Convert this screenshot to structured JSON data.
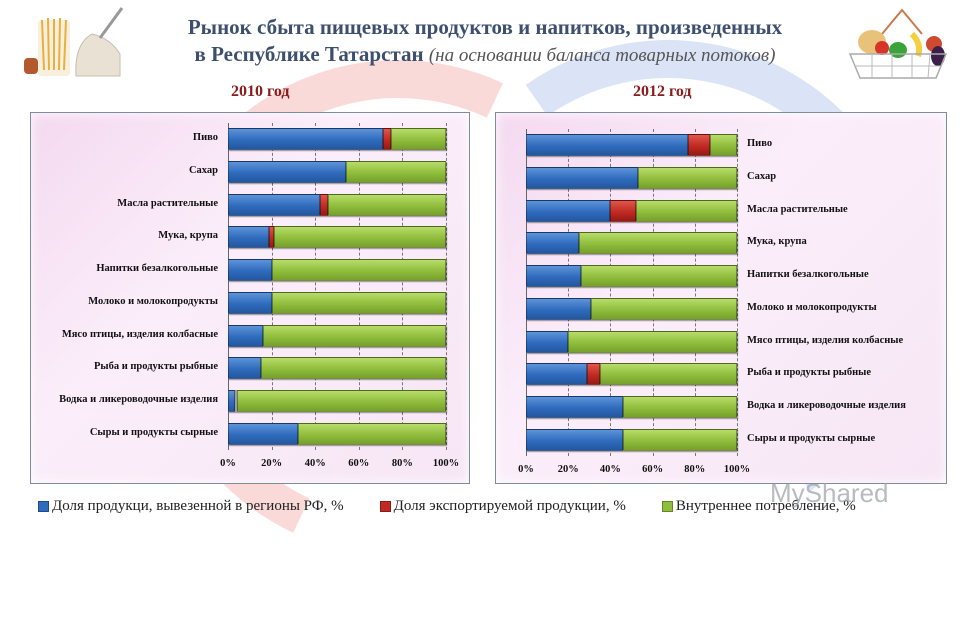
{
  "header": {
    "title_bold_line1": "Рынок сбыта пищевых продуктов и напитков, произведенных",
    "title_bold_line2": "в Республике Татарстан",
    "title_italic": "(на основании баланса товарных потоков)",
    "left_image": "pasta-flour-image",
    "right_image": "grocery-basket-image"
  },
  "colors": {
    "blue": "#2f6bbd",
    "red": "#c02a22",
    "green": "#8fbd3c",
    "year_label": "#8b1a1a",
    "title": "#3d4f6e"
  },
  "watermark": "MyShared",
  "chart_data": [
    {
      "type": "bar",
      "orientation": "horizontal",
      "stacked": "percent",
      "title": "2010 год",
      "categories": [
        "Пиво",
        "Сахар",
        "Масла растительные",
        "Мука, крупа",
        "Напитки безалкогольные",
        "Молоко и молокопродукты",
        "Мясо птицы, изделия колбасные",
        "Рыба и продукты рыбные",
        "Водка и ликероводочные изделия",
        "Сыры и продукты сырные"
      ],
      "series": [
        {
          "name": "Доля продукци, вывезенной в регионы РФ, %",
          "color": "#2f6bbd",
          "values": [
            71,
            54,
            42,
            19,
            20,
            20,
            16,
            15,
            3,
            32
          ]
        },
        {
          "name": "Доля экспортируемой продукции, %",
          "color": "#c02a22",
          "values": [
            4,
            0,
            4,
            2,
            0,
            0,
            0,
            0,
            1,
            0
          ]
        },
        {
          "name": "Внутреннее потребление, %",
          "color": "#8fbd3c",
          "values": [
            25,
            46,
            54,
            79,
            80,
            80,
            84,
            85,
            96,
            68
          ]
        }
      ],
      "xticks": [
        "0%",
        "20%",
        "40%",
        "60%",
        "80%",
        "100%"
      ],
      "xlim": [
        0,
        100
      ],
      "grid": true,
      "category_labels_side": "left"
    },
    {
      "type": "bar",
      "orientation": "horizontal",
      "stacked": "percent",
      "title": "2012 год",
      "categories": [
        "Пиво",
        "Сахар",
        "Масла растительные",
        "Мука, крупа",
        "Напитки безалкогольные",
        "Молоко и молокопродукты",
        "Мясо птицы, изделия колбасные",
        "Рыба и продукты рыбные",
        "Водка и ликероводочные изделия",
        "Сыры и продукты сырные"
      ],
      "series": [
        {
          "name": "Доля продукци, вывезенной в регионы РФ, %",
          "color": "#2f6bbd",
          "values": [
            77,
            53,
            40,
            25,
            26,
            31,
            20,
            29,
            46,
            46
          ]
        },
        {
          "name": "Доля экспортируемой продукции, %",
          "color": "#c02a22",
          "values": [
            10,
            0,
            12,
            0,
            0,
            0,
            0,
            6,
            0,
            0
          ]
        },
        {
          "name": "Внутреннее потребление, %",
          "color": "#8fbd3c",
          "values": [
            13,
            47,
            48,
            75,
            74,
            69,
            80,
            65,
            54,
            54
          ]
        }
      ],
      "xticks": [
        "0%",
        "20%",
        "40%",
        "60%",
        "80%",
        "100%"
      ],
      "xlim": [
        0,
        100
      ],
      "grid": true,
      "category_labels_side": "right"
    }
  ],
  "legend": [
    {
      "label": "Доля продукци, вывезенной в регионы РФ, %",
      "color": "#2f6bbd"
    },
    {
      "label": "Доля экспортируемой продукции, %",
      "color": "#c02a22"
    },
    {
      "label": "Внутреннее потребление, %",
      "color": "#8fbd3c"
    }
  ]
}
